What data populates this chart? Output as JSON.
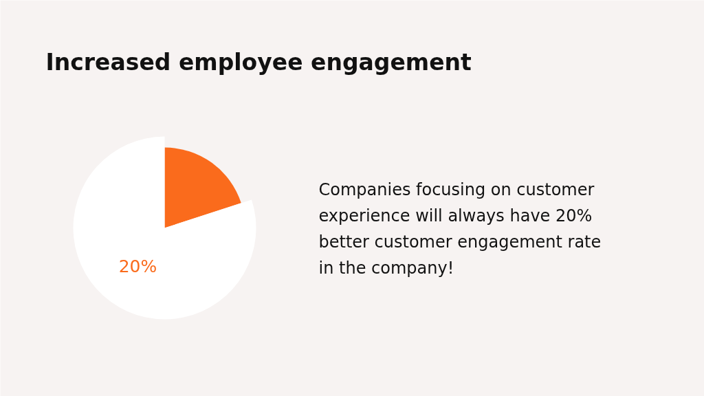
{
  "chart_data": {
    "type": "pie",
    "title": "Increased employee engagement",
    "categories": [
      null,
      null
    ],
    "values": [
      20,
      80
    ],
    "colors": [
      "#fa6b1c",
      "#ffffff"
    ],
    "annotations": [
      "20%",
      "Companies focusing on customer experience will always have 20% better customer engagement rate in the company!"
    ]
  }
}
